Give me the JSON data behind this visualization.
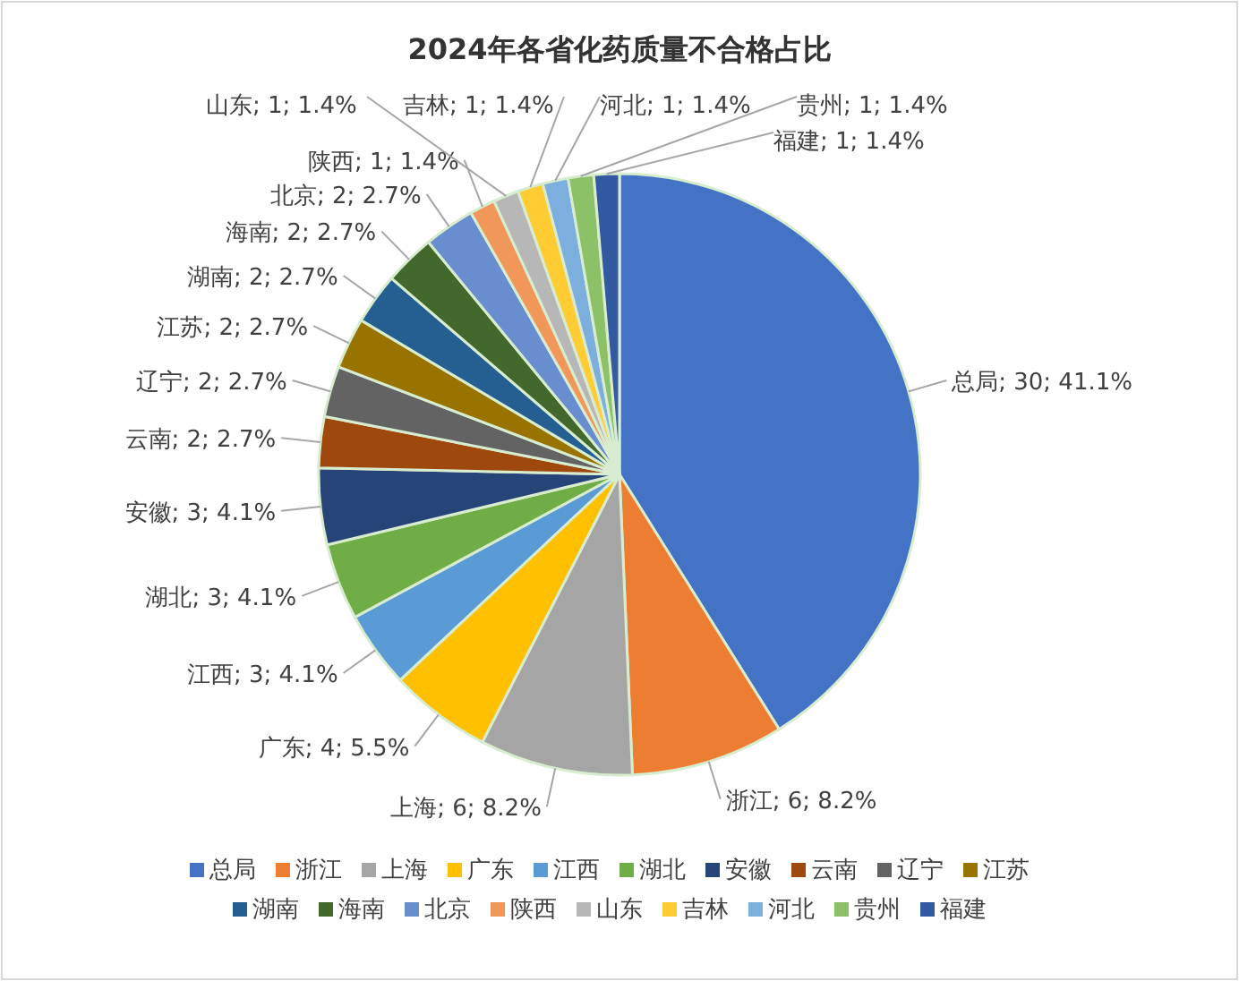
{
  "chart_data": {
    "type": "pie",
    "title": "2024年各省化药质量不合格占比",
    "categories": [
      "总局",
      "浙江",
      "上海",
      "广东",
      "江西",
      "湖北",
      "安徽",
      "云南",
      "辽宁",
      "江苏",
      "湖南",
      "海南",
      "北京",
      "陕西",
      "山东",
      "吉林",
      "河北",
      "贵州",
      "福建"
    ],
    "values": [
      30,
      6,
      6,
      4,
      3,
      3,
      3,
      2,
      2,
      2,
      2,
      2,
      2,
      1,
      1,
      1,
      1,
      1,
      1
    ],
    "value_labels": [
      "总局; 30; 41.1%",
      "浙江; 6; 8.2%",
      "上海; 6; 8.2%",
      "广东; 4; 5.5%",
      "江西; 3; 4.1%",
      "湖北; 3; 4.1%",
      "安徽; 3; 4.1%",
      "云南; 2; 2.7%",
      "辽宁; 2; 2.7%",
      "江苏; 2; 2.7%",
      "湖南; 2; 2.7%",
      "海南; 2; 2.7%",
      "北京; 2; 2.7%",
      "陕西; 1; 1.4%",
      "山东; 1; 1.4%",
      "吉林; 1; 1.4%",
      "河北; 1; 1.4%",
      "贵州; 1; 1.4%",
      "福建; 1; 1.4%"
    ],
    "colors": [
      "#4472c4",
      "#ed7d31",
      "#a5a5a5",
      "#ffc000",
      "#5b9bd5",
      "#70ad47",
      "#264478",
      "#9e480e",
      "#636363",
      "#997300",
      "#255e91",
      "#43682b",
      "#698ed0",
      "#f1975a",
      "#b7b7b7",
      "#ffcd33",
      "#7cafdd",
      "#8cc168",
      "#335aa1"
    ],
    "legend": "bottom"
  }
}
